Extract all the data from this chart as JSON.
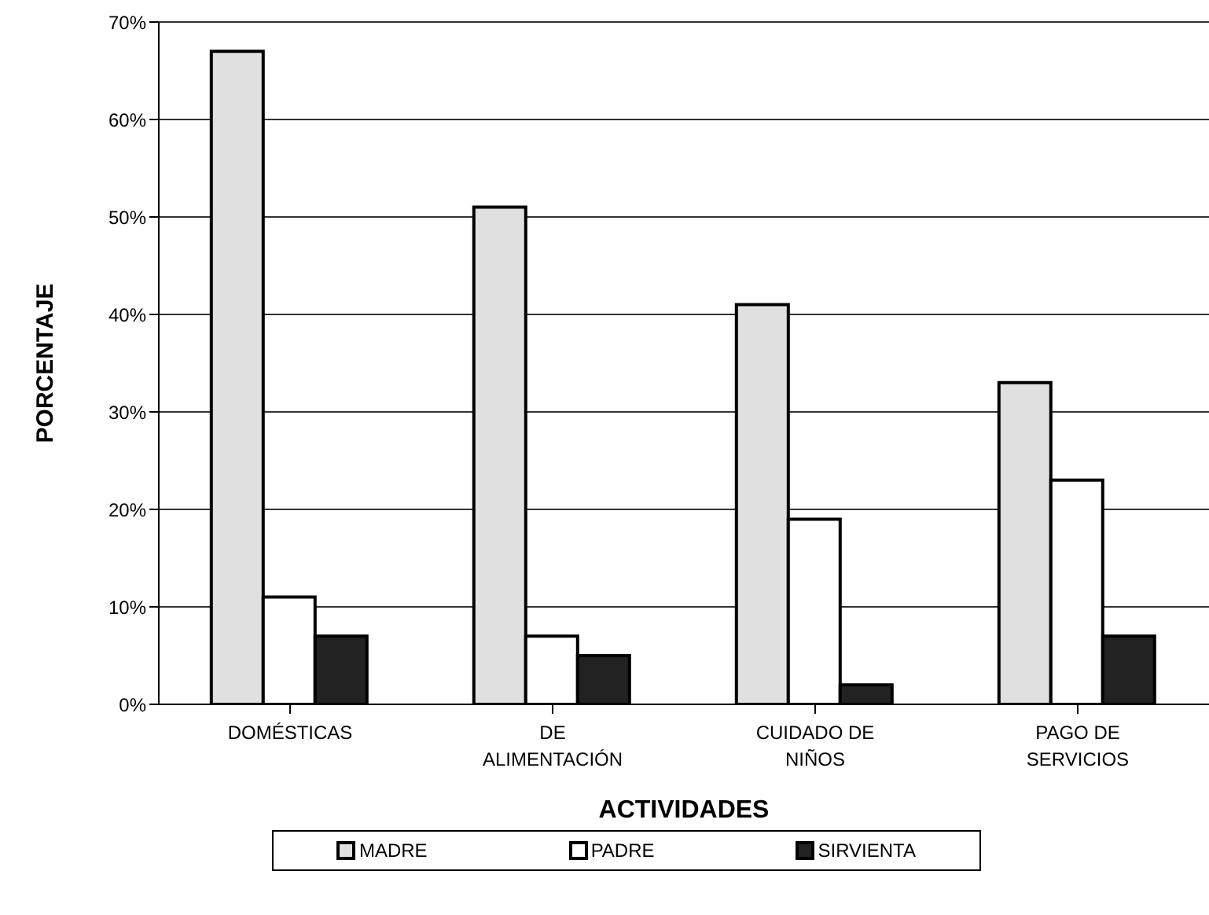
{
  "chart_data": {
    "type": "bar",
    "xlabel": "ACTIVIDADES",
    "ylabel": "PORCENTAJE",
    "categories": [
      "DOMÉSTICAS",
      "DE ALIMENTACIÓN",
      "CUIDADO DE NIÑOS",
      "PAGO DE SERVICIOS"
    ],
    "series": [
      {
        "name": "MADRE",
        "color": "#e0e0e0",
        "values": [
          67,
          51,
          41,
          33
        ]
      },
      {
        "name": "PADRE",
        "color": "#ffffff",
        "values": [
          11,
          7,
          19,
          23
        ]
      },
      {
        "name": "SIRVIENTA",
        "color": "#222222",
        "values": [
          7,
          5,
          2,
          7
        ]
      }
    ],
    "ylim": [
      0,
      70
    ],
    "yticks": [
      {
        "value": 0,
        "label": "0%"
      },
      {
        "value": 10,
        "label": "10%"
      },
      {
        "value": 20,
        "label": "20%"
      },
      {
        "value": 30,
        "label": "30%"
      },
      {
        "value": 40,
        "label": "40%"
      },
      {
        "value": 50,
        "label": "50%"
      },
      {
        "value": 60,
        "label": "60%"
      },
      {
        "value": 70,
        "label": "70%"
      }
    ],
    "grid": "y",
    "legend": "bottom"
  }
}
